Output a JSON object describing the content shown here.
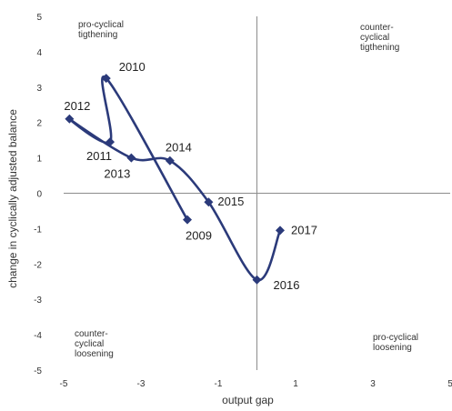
{
  "chart_data": {
    "type": "line",
    "title": "",
    "xlabel": "output gap",
    "ylabel": "change in cyclically adjusted balance",
    "xlim": [
      -5,
      5
    ],
    "ylim": [
      -5,
      5
    ],
    "x_ticks": [
      "-5",
      "-3",
      "-1",
      "1",
      "3",
      "5"
    ],
    "y_ticks": [
      "5",
      "4",
      "3",
      "2",
      "1",
      "0",
      "-1",
      "-2",
      "-3",
      "-4",
      "-5"
    ],
    "grid": false,
    "color": "#2b3a7a",
    "series": [
      {
        "points": [
          {
            "year": "2009",
            "x": -1.8,
            "y": -0.75
          },
          {
            "year": "2010",
            "x": -3.9,
            "y": 3.25
          },
          {
            "year": "2011",
            "x": -3.8,
            "y": 1.45
          },
          {
            "year": "2012",
            "x": -4.85,
            "y": 2.1
          },
          {
            "year": "2013",
            "x": -3.25,
            "y": 1.0
          },
          {
            "year": "2014",
            "x": -2.25,
            "y": 0.92
          },
          {
            "year": "2015",
            "x": -1.25,
            "y": -0.25
          },
          {
            "year": "2016",
            "x": 0.0,
            "y": -2.45
          },
          {
            "year": "2017",
            "x": 0.6,
            "y": -1.05
          }
        ]
      }
    ],
    "annotations": {
      "top_left": [
        "pro-cyclical",
        "tigthening"
      ],
      "top_right": [
        "counter-",
        "cyclical",
        "tigthening"
      ],
      "bottom_left": [
        "counter-",
        "cyclical",
        "loosening"
      ],
      "bottom_right": [
        "pro-cyclical",
        "loosening"
      ]
    }
  }
}
